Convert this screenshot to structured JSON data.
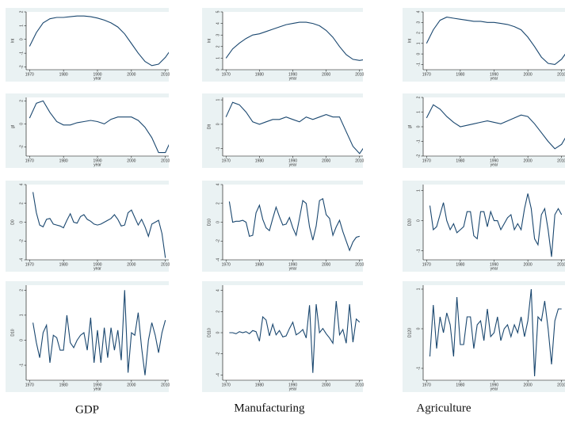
{
  "captions": [
    "GDP",
    "Manufacturing",
    "Agriculture"
  ],
  "chart_data": [
    {
      "type": "line",
      "y_label": "lnt",
      "x_label": "year",
      "color": "#1a476f",
      "xlim": [
        1969,
        2011
      ],
      "xticks": [
        1970,
        1980,
        1990,
        2000,
        2010
      ],
      "ylim": [
        -2.2,
        2
      ],
      "yticks": [
        -2,
        -1,
        0,
        1,
        2
      ],
      "x": [
        1970,
        1972,
        1974,
        1976,
        1978,
        1980,
        1982,
        1984,
        1986,
        1988,
        1990,
        1992,
        1994,
        1996,
        1998,
        2000,
        2002,
        2004,
        2006,
        2008,
        2010,
        2012
      ],
      "values": [
        -0.5,
        0.5,
        1.2,
        1.5,
        1.6,
        1.6,
        1.65,
        1.7,
        1.7,
        1.65,
        1.55,
        1.4,
        1.2,
        0.9,
        0.4,
        -0.3,
        -1.0,
        -1.6,
        -1.9,
        -1.8,
        -1.3,
        -0.6
      ]
    },
    {
      "type": "line",
      "y_label": "gt",
      "x_label": "year",
      "color": "#1a476f",
      "xlim": [
        1969,
        2011
      ],
      "xticks": [
        1970,
        1980,
        1990,
        2000,
        2010
      ],
      "ylim": [
        -2.8,
        2.3
      ],
      "yticks": [
        -2,
        0,
        2
      ],
      "x": [
        1970,
        1972,
        1974,
        1976,
        1978,
        1980,
        1982,
        1984,
        1986,
        1988,
        1990,
        1992,
        1994,
        1996,
        1998,
        2000,
        2002,
        2004,
        2006,
        2008,
        2010,
        2012
      ],
      "values": [
        0.5,
        1.8,
        2.0,
        1.0,
        0.2,
        -0.1,
        -0.1,
        0.1,
        0.2,
        0.3,
        0.2,
        0.0,
        0.4,
        0.6,
        0.6,
        0.6,
        0.3,
        -0.3,
        -1.2,
        -2.5,
        -2.5,
        -1.2
      ]
    },
    {
      "type": "line",
      "y_label": "D0",
      "x_label": "year",
      "color": "#1a476f",
      "xlim": [
        1969,
        2011
      ],
      "xticks": [
        1970,
        1980,
        1990,
        2000,
        2010
      ],
      "ylim": [
        -4,
        4
      ],
      "yticks": [
        -4,
        -2,
        0,
        2,
        4
      ],
      "x": [
        1971,
        1972,
        1973,
        1974,
        1975,
        1976,
        1977,
        1978,
        1979,
        1980,
        1981,
        1982,
        1983,
        1984,
        1985,
        1986,
        1987,
        1988,
        1989,
        1990,
        1991,
        1992,
        1993,
        1994,
        1995,
        1996,
        1997,
        1998,
        1999,
        2000,
        2001,
        2002,
        2003,
        2004,
        2005,
        2006,
        2007,
        2008,
        2009,
        2010
      ],
      "values": [
        3.2,
        1.0,
        -0.3,
        -0.5,
        0.3,
        0.4,
        -0.2,
        -0.3,
        -0.4,
        -0.6,
        0.2,
        0.9,
        0.0,
        -0.1,
        0.6,
        0.8,
        0.3,
        0.1,
        -0.2,
        -0.3,
        -0.2,
        0.0,
        0.2,
        0.4,
        0.8,
        0.3,
        -0.4,
        -0.3,
        1.0,
        1.3,
        0.5,
        -0.3,
        0.3,
        -0.5,
        -1.5,
        -0.2,
        0.0,
        0.2,
        -1.2,
        -3.8
      ]
    },
    {
      "type": "line",
      "y_label": "D10",
      "x_label": "year",
      "color": "#1a476f",
      "xlim": [
        1969,
        2011
      ],
      "xticks": [
        1970,
        1980,
        1990,
        2000,
        2010
      ],
      "ylim": [
        -1.6,
        2.2
      ],
      "yticks": [
        -1,
        0,
        1,
        2
      ],
      "x": [
        1971,
        1972,
        1973,
        1974,
        1975,
        1976,
        1977,
        1978,
        1979,
        1980,
        1981,
        1982,
        1983,
        1984,
        1985,
        1986,
        1987,
        1988,
        1989,
        1990,
        1991,
        1992,
        1993,
        1994,
        1995,
        1996,
        1997,
        1998,
        1999,
        2000,
        2001,
        2002,
        2003,
        2004,
        2005,
        2006,
        2007,
        2008,
        2009,
        2010
      ],
      "values": [
        0.7,
        -0.1,
        -0.7,
        0.3,
        0.6,
        -0.9,
        0.2,
        0.1,
        -0.4,
        -0.4,
        1.0,
        -0.1,
        -0.3,
        0.0,
        0.2,
        0.3,
        -0.4,
        0.9,
        -0.9,
        0.4,
        -0.9,
        0.5,
        -0.7,
        0.5,
        -0.4,
        0.4,
        -0.8,
        2.0,
        -1.3,
        0.3,
        0.2,
        1.1,
        -0.3,
        -1.4,
        0.0,
        0.7,
        0.2,
        -0.5,
        0.3,
        0.8
      ]
    },
    {
      "type": "line",
      "y_label": "lnt",
      "x_label": "year",
      "color": "#1a476f",
      "xlim": [
        1969,
        2011
      ],
      "xticks": [
        1970,
        1980,
        1990,
        2000,
        2010
      ],
      "ylim": [
        0,
        5
      ],
      "yticks": [
        0,
        1,
        2,
        3,
        4,
        5
      ],
      "x": [
        1970,
        1972,
        1974,
        1976,
        1978,
        1980,
        1982,
        1984,
        1986,
        1988,
        1990,
        1992,
        1994,
        1996,
        1998,
        2000,
        2002,
        2004,
        2006,
        2008,
        2010,
        2012
      ],
      "values": [
        1.0,
        1.8,
        2.3,
        2.7,
        3.0,
        3.1,
        3.3,
        3.5,
        3.7,
        3.9,
        4.0,
        4.1,
        4.1,
        4.0,
        3.8,
        3.4,
        2.8,
        2.0,
        1.3,
        0.9,
        0.8,
        0.9
      ]
    },
    {
      "type": "line",
      "y_label": "Dlt",
      "x_label": "year",
      "color": "#1a476f",
      "xlim": [
        1969,
        2011
      ],
      "xticks": [
        1970,
        1980,
        1990,
        2000,
        2010
      ],
      "ylim": [
        -1.3,
        1.1
      ],
      "yticks": [
        -1,
        0,
        1
      ],
      "x": [
        1970,
        1972,
        1974,
        1976,
        1978,
        1980,
        1982,
        1984,
        1986,
        1988,
        1990,
        1992,
        1994,
        1996,
        1998,
        2000,
        2002,
        2004,
        2006,
        2008,
        2010,
        2012
      ],
      "values": [
        0.3,
        0.9,
        0.8,
        0.5,
        0.1,
        0.0,
        0.1,
        0.2,
        0.2,
        0.3,
        0.2,
        0.1,
        0.3,
        0.2,
        0.3,
        0.4,
        0.3,
        0.3,
        -0.3,
        -0.9,
        -1.2,
        -0.8
      ]
    },
    {
      "type": "line",
      "y_label": "D10",
      "x_label": "year",
      "color": "#1a476f",
      "xlim": [
        1969,
        2011
      ],
      "xticks": [
        1970,
        1980,
        1990,
        2000,
        2010
      ],
      "ylim": [
        -4,
        4
      ],
      "yticks": [
        -4,
        -2,
        0,
        2,
        4
      ],
      "x": [
        1971,
        1972,
        1973,
        1974,
        1975,
        1976,
        1977,
        1978,
        1979,
        1980,
        1981,
        1982,
        1983,
        1984,
        1985,
        1986,
        1987,
        1988,
        1989,
        1990,
        1991,
        1992,
        1993,
        1994,
        1995,
        1996,
        1997,
        1998,
        1999,
        2000,
        2001,
        2002,
        2003,
        2004,
        2005,
        2006,
        2007,
        2008,
        2009,
        2010
      ],
      "values": [
        2.2,
        0.0,
        0.1,
        0.1,
        0.2,
        0.0,
        -1.5,
        -1.4,
        1.0,
        1.8,
        0.3,
        -0.6,
        -0.9,
        0.4,
        1.6,
        0.6,
        -0.3,
        -0.2,
        0.5,
        -0.6,
        -1.4,
        0.4,
        2.3,
        2.0,
        -0.5,
        -1.9,
        -0.4,
        2.3,
        2.5,
        0.8,
        0.4,
        -1.4,
        -0.5,
        0.2,
        -1.0,
        -2.0,
        -3.0,
        -2.1,
        -1.6,
        -1.5
      ]
    },
    {
      "type": "line",
      "y_label": "D110",
      "x_label": "year",
      "color": "#1a476f",
      "xlim": [
        1969,
        2011
      ],
      "xticks": [
        1970,
        1980,
        1990,
        2000,
        2010
      ],
      "ylim": [
        -4.5,
        4.5
      ],
      "yticks": [
        -4,
        -2,
        0,
        2,
        4
      ],
      "x": [
        1971,
        1972,
        1973,
        1974,
        1975,
        1976,
        1977,
        1978,
        1979,
        1980,
        1981,
        1982,
        1983,
        1984,
        1985,
        1986,
        1987,
        1988,
        1989,
        1990,
        1991,
        1992,
        1993,
        1994,
        1995,
        1996,
        1997,
        1998,
        1999,
        2000,
        2001,
        2002,
        2003,
        2004,
        2005,
        2006,
        2007,
        2008,
        2009,
        2010
      ],
      "values": [
        0.0,
        0.0,
        -0.1,
        0.1,
        0.0,
        0.1,
        -0.1,
        0.2,
        0.1,
        -0.8,
        1.5,
        1.2,
        -0.3,
        0.8,
        -0.2,
        0.2,
        -0.4,
        -0.3,
        0.4,
        1.0,
        -0.2,
        0.0,
        0.3,
        -0.5,
        2.6,
        -3.8,
        2.7,
        0.0,
        0.4,
        -0.1,
        -0.5,
        -1.0,
        3.0,
        -0.2,
        0.3,
        -1.0,
        2.7,
        -0.9,
        1.3,
        1.0
      ]
    },
    {
      "type": "line",
      "y_label": "lnt",
      "x_label": "year",
      "color": "#1a476f",
      "xlim": [
        1969,
        2011
      ],
      "xticks": [
        1970,
        1980,
        1990,
        2000,
        2010
      ],
      "ylim": [
        -1.5,
        4
      ],
      "yticks": [
        -1,
        0,
        1,
        2,
        3,
        4
      ],
      "x": [
        1970,
        1972,
        1974,
        1976,
        1978,
        1980,
        1982,
        1984,
        1986,
        1988,
        1990,
        1992,
        1994,
        1996,
        1998,
        2000,
        2002,
        2004,
        2006,
        2008,
        2010,
        2012
      ],
      "values": [
        1.0,
        2.3,
        3.2,
        3.5,
        3.4,
        3.3,
        3.2,
        3.1,
        3.1,
        3.0,
        3.0,
        2.9,
        2.8,
        2.6,
        2.3,
        1.6,
        0.7,
        -0.3,
        -0.9,
        -1.0,
        -0.5,
        0.4
      ]
    },
    {
      "type": "line",
      "y_label": "gt",
      "x_label": "year",
      "color": "#1a476f",
      "xlim": [
        1969,
        2011
      ],
      "xticks": [
        1970,
        1980,
        1990,
        2000,
        2010
      ],
      "ylim": [
        -2,
        2
      ],
      "yticks": [
        -2,
        -1,
        0,
        1,
        2
      ],
      "x": [
        1970,
        1972,
        1974,
        1976,
        1978,
        1980,
        1982,
        1984,
        1986,
        1988,
        1990,
        1992,
        1994,
        1996,
        1998,
        2000,
        2002,
        2004,
        2006,
        2008,
        2010,
        2012
      ],
      "values": [
        0.6,
        1.5,
        1.2,
        0.7,
        0.3,
        0.0,
        0.1,
        0.2,
        0.3,
        0.4,
        0.3,
        0.2,
        0.4,
        0.6,
        0.8,
        0.7,
        0.2,
        -0.4,
        -1.0,
        -1.5,
        -1.2,
        -0.4
      ]
    },
    {
      "type": "line",
      "y_label": "D20",
      "x_label": "year",
      "color": "#1a476f",
      "xlim": [
        1969,
        2011
      ],
      "xticks": [
        1970,
        1980,
        1990,
        2000,
        2010
      ],
      "ylim": [
        -1.3,
        1.2
      ],
      "yticks": [
        -1,
        0,
        1
      ],
      "x": [
        1971,
        1972,
        1973,
        1974,
        1975,
        1976,
        1977,
        1978,
        1979,
        1980,
        1981,
        1982,
        1983,
        1984,
        1985,
        1986,
        1987,
        1988,
        1989,
        1990,
        1991,
        1992,
        1993,
        1994,
        1995,
        1996,
        1997,
        1998,
        1999,
        2000,
        2001,
        2002,
        2003,
        2004,
        2005,
        2006,
        2007,
        2008,
        2009,
        2010
      ],
      "values": [
        0.5,
        -0.3,
        -0.2,
        0.2,
        0.6,
        0.0,
        -0.3,
        -0.1,
        -0.4,
        -0.3,
        -0.2,
        0.3,
        0.3,
        -0.5,
        -0.6,
        0.3,
        0.3,
        -0.2,
        0.3,
        0.0,
        0.0,
        -0.3,
        -0.1,
        0.1,
        0.2,
        -0.3,
        -0.1,
        -0.3,
        0.4,
        0.9,
        0.4,
        -0.6,
        -0.8,
        0.2,
        0.4,
        -0.3,
        -1.2,
        0.2,
        0.4,
        0.2
      ]
    },
    {
      "type": "line",
      "y_label": "D120",
      "x_label": "year",
      "color": "#1a476f",
      "xlim": [
        1969,
        2011
      ],
      "xticks": [
        1970,
        1980,
        1990,
        2000,
        2010
      ],
      "ylim": [
        -1.3,
        1.1
      ],
      "yticks": [
        -1,
        0,
        1
      ],
      "x": [
        1971,
        1972,
        1973,
        1974,
        1975,
        1976,
        1977,
        1978,
        1979,
        1980,
        1981,
        1982,
        1983,
        1984,
        1985,
        1986,
        1987,
        1988,
        1989,
        1990,
        1991,
        1992,
        1993,
        1994,
        1995,
        1996,
        1997,
        1998,
        1999,
        2000,
        2001,
        2002,
        2003,
        2004,
        2005,
        2006,
        2007,
        2008,
        2009,
        2010
      ],
      "values": [
        -0.7,
        0.6,
        -0.5,
        0.3,
        -0.1,
        0.4,
        0.1,
        -0.7,
        0.8,
        -0.4,
        -0.4,
        0.3,
        0.3,
        -0.5,
        0.1,
        0.2,
        -0.3,
        0.5,
        -0.2,
        -0.1,
        0.3,
        -0.3,
        0.0,
        0.1,
        -0.2,
        0.1,
        -0.1,
        0.3,
        -0.2,
        0.2,
        1.0,
        -1.2,
        0.3,
        0.2,
        0.7,
        0.0,
        -0.9,
        0.2,
        0.5,
        0.5
      ]
    }
  ]
}
